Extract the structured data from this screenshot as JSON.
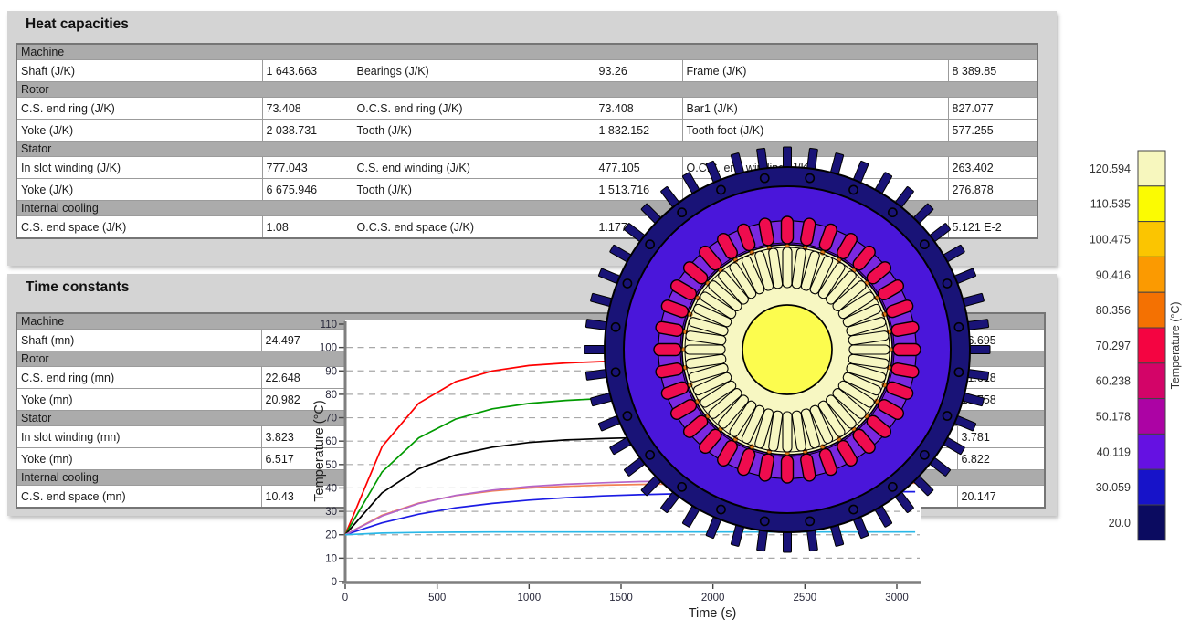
{
  "panels": {
    "heat_capacities": {
      "title": "Heat capacities",
      "rows": [
        {
          "type": "section",
          "label": "Machine"
        },
        {
          "type": "data",
          "cells": [
            [
              "Shaft (J/K)",
              "1 643.663"
            ],
            [
              "Bearings (J/K)",
              "93.26"
            ],
            [
              "Frame (J/K)",
              "8 389.85"
            ]
          ]
        },
        {
          "type": "section",
          "label": "Rotor"
        },
        {
          "type": "data",
          "cells": [
            [
              "C.S. end ring (J/K)",
              "73.408"
            ],
            [
              "O.C.S. end ring (J/K)",
              "73.408"
            ],
            [
              "Bar1 (J/K)",
              "827.077"
            ]
          ]
        },
        {
          "type": "data",
          "cells": [
            [
              "Yoke (J/K)",
              "2 038.731"
            ],
            [
              "Tooth (J/K)",
              "1 832.152"
            ],
            [
              "Tooth foot (J/K)",
              "577.255"
            ]
          ]
        },
        {
          "type": "section",
          "label": "Stator"
        },
        {
          "type": "data",
          "cells": [
            [
              "In slot winding (J/K)",
              "777.043"
            ],
            [
              "C.S. end winding (J/K)",
              "477.105"
            ],
            [
              "O.C.S. end winding (J/K)",
              "263.402"
            ]
          ]
        },
        {
          "type": "data",
          "cells": [
            [
              "Yoke (J/K)",
              "6 675.946"
            ],
            [
              "Tooth (J/K)",
              "1 513.716"
            ],
            [
              "",
              "276.878"
            ]
          ]
        },
        {
          "type": "section",
          "label": "Internal cooling"
        },
        {
          "type": "data",
          "cells": [
            [
              "C.S. end space (J/K)",
              "1.08"
            ],
            [
              "O.C.S. end space (J/K)",
              "1.177"
            ],
            [
              "",
              "5.121 E-2"
            ]
          ]
        }
      ]
    },
    "time_constants": {
      "title": "Time constants",
      "rows": [
        {
          "type": "section",
          "label": "Machine"
        },
        {
          "type": "data",
          "cells": [
            [
              "Shaft (mn)",
              "24.497"
            ],
            [
              "",
              ""
            ],
            [
              "",
              "26.695"
            ]
          ]
        },
        {
          "type": "section",
          "label": "Rotor"
        },
        {
          "type": "data",
          "cells": [
            [
              "C.S. end ring (mn)",
              "22.648"
            ],
            [
              "",
              ""
            ],
            [
              "",
              "21.618"
            ]
          ]
        },
        {
          "type": "data",
          "cells": [
            [
              "Yoke (mn)",
              "20.982"
            ],
            [
              "",
              ""
            ],
            [
              "",
              "19.758"
            ]
          ]
        },
        {
          "type": "section",
          "label": "Stator"
        },
        {
          "type": "data",
          "cells": [
            [
              "In slot winding (mn)",
              "3.823"
            ],
            [
              "",
              ""
            ],
            [
              "",
              "3.781"
            ]
          ]
        },
        {
          "type": "data",
          "cells": [
            [
              "Yoke (mn)",
              "6.517"
            ],
            [
              "",
              ""
            ],
            [
              "",
              "6.822"
            ]
          ]
        },
        {
          "type": "section",
          "label": "Internal cooling"
        },
        {
          "type": "data",
          "cells": [
            [
              "C.S. end space (mn)",
              "10.43"
            ],
            [
              "",
              ""
            ],
            [
              "",
              "20.147"
            ]
          ]
        }
      ]
    }
  },
  "chart_data": {
    "type": "line",
    "title": "",
    "xlabel": "Time (s)",
    "ylabel": "Temperature (°C)",
    "xlim": [
      0,
      3124
    ],
    "ylim": [
      0,
      110
    ],
    "xticks": [
      0,
      500,
      1000,
      1500,
      2000,
      2500,
      3000
    ],
    "yticks": [
      0,
      10,
      20,
      30,
      40,
      50,
      60,
      70,
      80,
      90,
      100,
      110
    ],
    "grid": "horizontal-dashed",
    "legend": "none",
    "x": [
      0,
      200,
      400,
      600,
      800,
      1000,
      1200,
      1400,
      1600,
      1800,
      2000,
      2200,
      2400,
      2600,
      2800,
      3000,
      3100
    ],
    "series": [
      {
        "name": "red",
        "color": "#fe0000",
        "y": [
          20,
          57.6,
          76.2,
          85.4,
          90.0,
          92.3,
          93.4,
          94.0,
          94.2,
          94.4,
          94.4,
          94.5,
          94.5,
          94.5,
          94.5,
          94.5,
          94.5
        ]
      },
      {
        "name": "green",
        "color": "#019a01",
        "y": [
          20,
          46.8,
          61.4,
          69.4,
          73.8,
          76.1,
          77.4,
          78.2,
          78.5,
          78.7,
          78.9,
          78.9,
          79.0,
          79.0,
          79.0,
          79.0,
          79.0
        ]
      },
      {
        "name": "black",
        "color": "#000000",
        "y": [
          20,
          37.9,
          48.2,
          54.1,
          57.4,
          59.4,
          60.5,
          61.1,
          61.5,
          61.7,
          61.8,
          61.9,
          61.9,
          62.0,
          62.0,
          62.0,
          62.0
        ]
      },
      {
        "name": "blue",
        "color": "#1b1be4",
        "y": [
          20,
          25.1,
          28.8,
          31.5,
          33.4,
          34.8,
          35.8,
          36.6,
          37.1,
          37.5,
          37.8,
          38.0,
          38.1,
          38.2,
          38.3,
          38.4,
          38.4
        ]
      },
      {
        "name": "orange",
        "color": "#f28052",
        "y": [
          20,
          28.3,
          33.5,
          36.7,
          38.7,
          40.0,
          40.7,
          41.2,
          41.5,
          41.7,
          41.8,
          41.9,
          41.9,
          42.0,
          42.0,
          42.0,
          42.0
        ]
      },
      {
        "name": "purple",
        "color": "#b565c8",
        "y": [
          20,
          28.0,
          33.3,
          36.8,
          39.1,
          40.6,
          41.6,
          42.2,
          42.7,
          42.9,
          43.1,
          43.3,
          43.3,
          43.4,
          43.4,
          43.5,
          43.5
        ]
      },
      {
        "name": "cyan",
        "color": "#2ab8e8",
        "y": [
          20,
          20.7,
          21.0,
          21.1,
          21.2,
          21.2,
          21.2,
          21.2,
          21.2,
          21.2,
          21.2,
          21.2,
          21.2,
          21.2,
          21.2,
          21.2,
          21.2
        ]
      }
    ]
  },
  "colorbar": {
    "title": "Temperature (°C)",
    "labels": [
      "120.594",
      "110.535",
      "100.475",
      "90.416",
      "80.356",
      "70.297",
      "60.238",
      "50.178",
      "40.119",
      "30.059",
      "20.0"
    ],
    "colors": [
      "#f7f7be",
      "#fbfb02",
      "#fbc501",
      "#fb9a01",
      "#f47102",
      "#f40441",
      "#d30468",
      "#ac03a4",
      "#6511e2",
      "#1713c9",
      "#0b0b60"
    ]
  },
  "motor": {
    "frame_navy": "#191377",
    "yoke_blue": "#4a16da",
    "slot_dark_violet": "#5a10c8",
    "wedge_violet": "#7b28e0",
    "winding_red": "#ef0c4e",
    "dot_orange": "#e07818",
    "core_cream": "#f7f7c2",
    "shaft_yellow": "#fcfc4e",
    "outline": "#000000"
  }
}
